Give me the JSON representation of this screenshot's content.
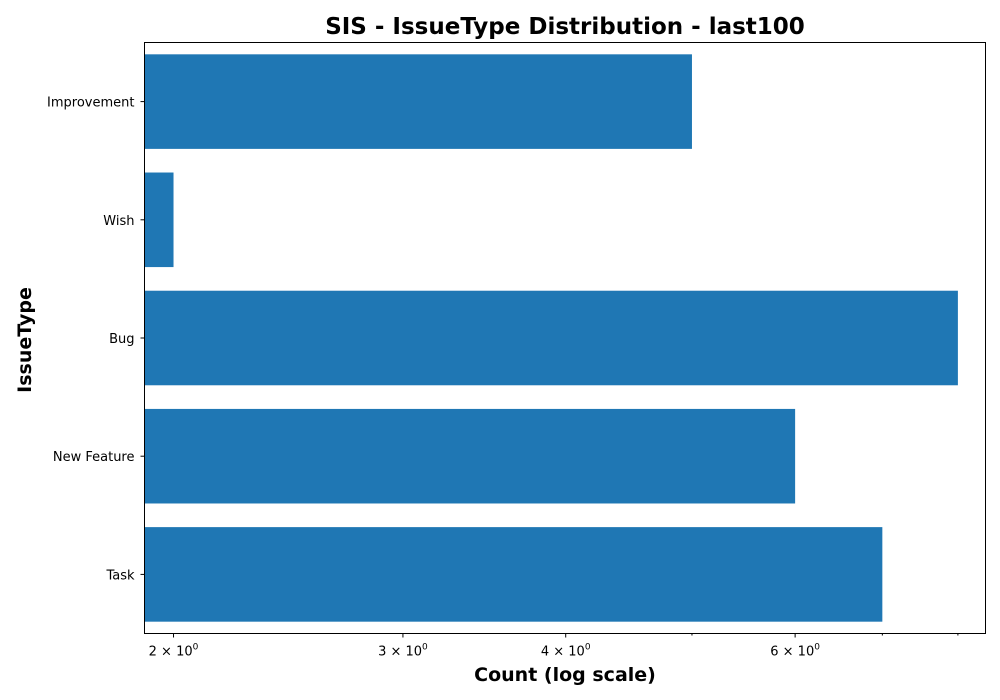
{
  "chart_data": {
    "type": "bar",
    "orientation": "horizontal",
    "title": "SIS - IssueType Distribution - last100",
    "xlabel": "Count (log scale)",
    "ylabel": "IssueType",
    "x_scale": "log",
    "xlim": [
      1.9,
      8.4
    ],
    "grid": false,
    "bar_color": "#1f77b4",
    "categories": [
      "Task",
      "New Feature",
      "Bug",
      "Wish",
      "Improvement"
    ],
    "values": [
      7,
      6,
      8,
      2,
      5
    ],
    "x_major_ticks": [
      {
        "value": 2,
        "base": "2",
        "sep": "×",
        "pow": "10",
        "exp": "0"
      },
      {
        "value": 3,
        "base": "3",
        "sep": "×",
        "pow": "10",
        "exp": "0"
      },
      {
        "value": 4,
        "base": "4",
        "sep": "×",
        "pow": "10",
        "exp": "0"
      },
      {
        "value": 6,
        "base": "6",
        "sep": "×",
        "pow": "10",
        "exp": "0"
      }
    ],
    "x_minor_ticks": [
      5,
      7,
      8
    ]
  }
}
